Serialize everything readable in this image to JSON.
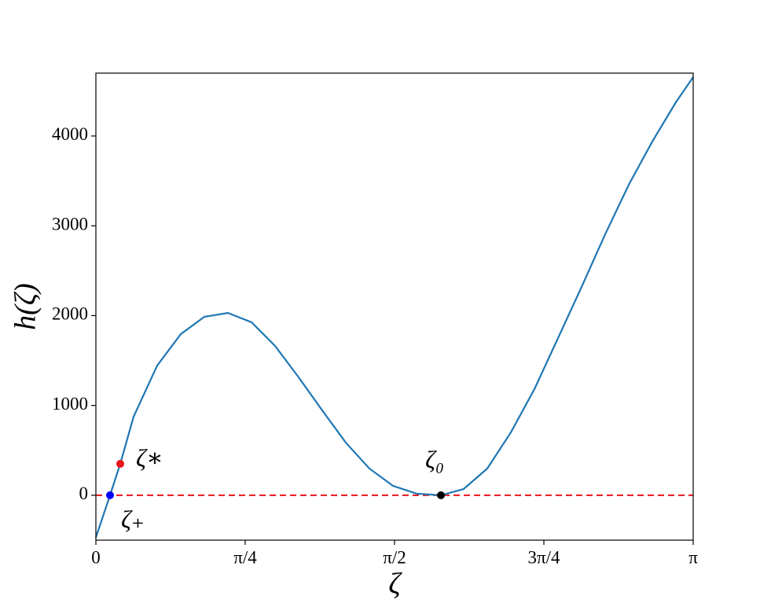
{
  "chart_data": {
    "type": "line",
    "xlabel": "ζ",
    "ylabel": "h(ζ)",
    "x": [
      0,
      0.0744,
      0.1281,
      0.1984,
      0.3224,
      0.4464,
      0.5705,
      0.6945,
      0.8185,
      0.9425,
      1.0665,
      1.1905,
      1.3145,
      1.4385,
      1.5626,
      1.6866,
      1.8147,
      1.9346,
      2.0586,
      2.1826,
      2.3066,
      2.4306,
      2.5546,
      2.6787,
      2.8027,
      2.9267,
      3.0507,
      3.1416
    ],
    "series": [
      {
        "color": "#1f77b4",
        "values": [
          -470,
          0,
          350,
          875,
          1444,
          1794,
          1987,
          2030,
          1926,
          1663,
          1313,
          945,
          586,
          298,
          105,
          18,
          0,
          70,
          298,
          700,
          1182,
          1750,
          2320,
          2906,
          3457,
          3939,
          4376,
          4656
        ]
      }
    ],
    "points": [
      {
        "label": "ζ₊",
        "x": 0.0744,
        "y": 0,
        "color": "#0000ff"
      },
      {
        "label": "ζ∗",
        "x": 0.1281,
        "y": 350,
        "color": "#e8141b"
      },
      {
        "label": "ζ₀",
        "x": 1.8147,
        "y": 0,
        "color": "#000000"
      }
    ],
    "hline": {
      "y": 0,
      "color": "#e8141b",
      "style": "dashed"
    },
    "xlim": [
      0,
      3.1416
    ],
    "ylim": [
      -500,
      4700
    ],
    "xticks": [
      0,
      {
        "value": 0.7854,
        "label": "π/4"
      },
      {
        "value": 1.5708,
        "label": "π/2"
      },
      {
        "value": 2.3562,
        "label": "3π/4"
      },
      {
        "value": 3.1416,
        "label": "π"
      }
    ],
    "yticks": [
      0,
      1000,
      2000,
      3000,
      4000
    ],
    "grid": false
  }
}
